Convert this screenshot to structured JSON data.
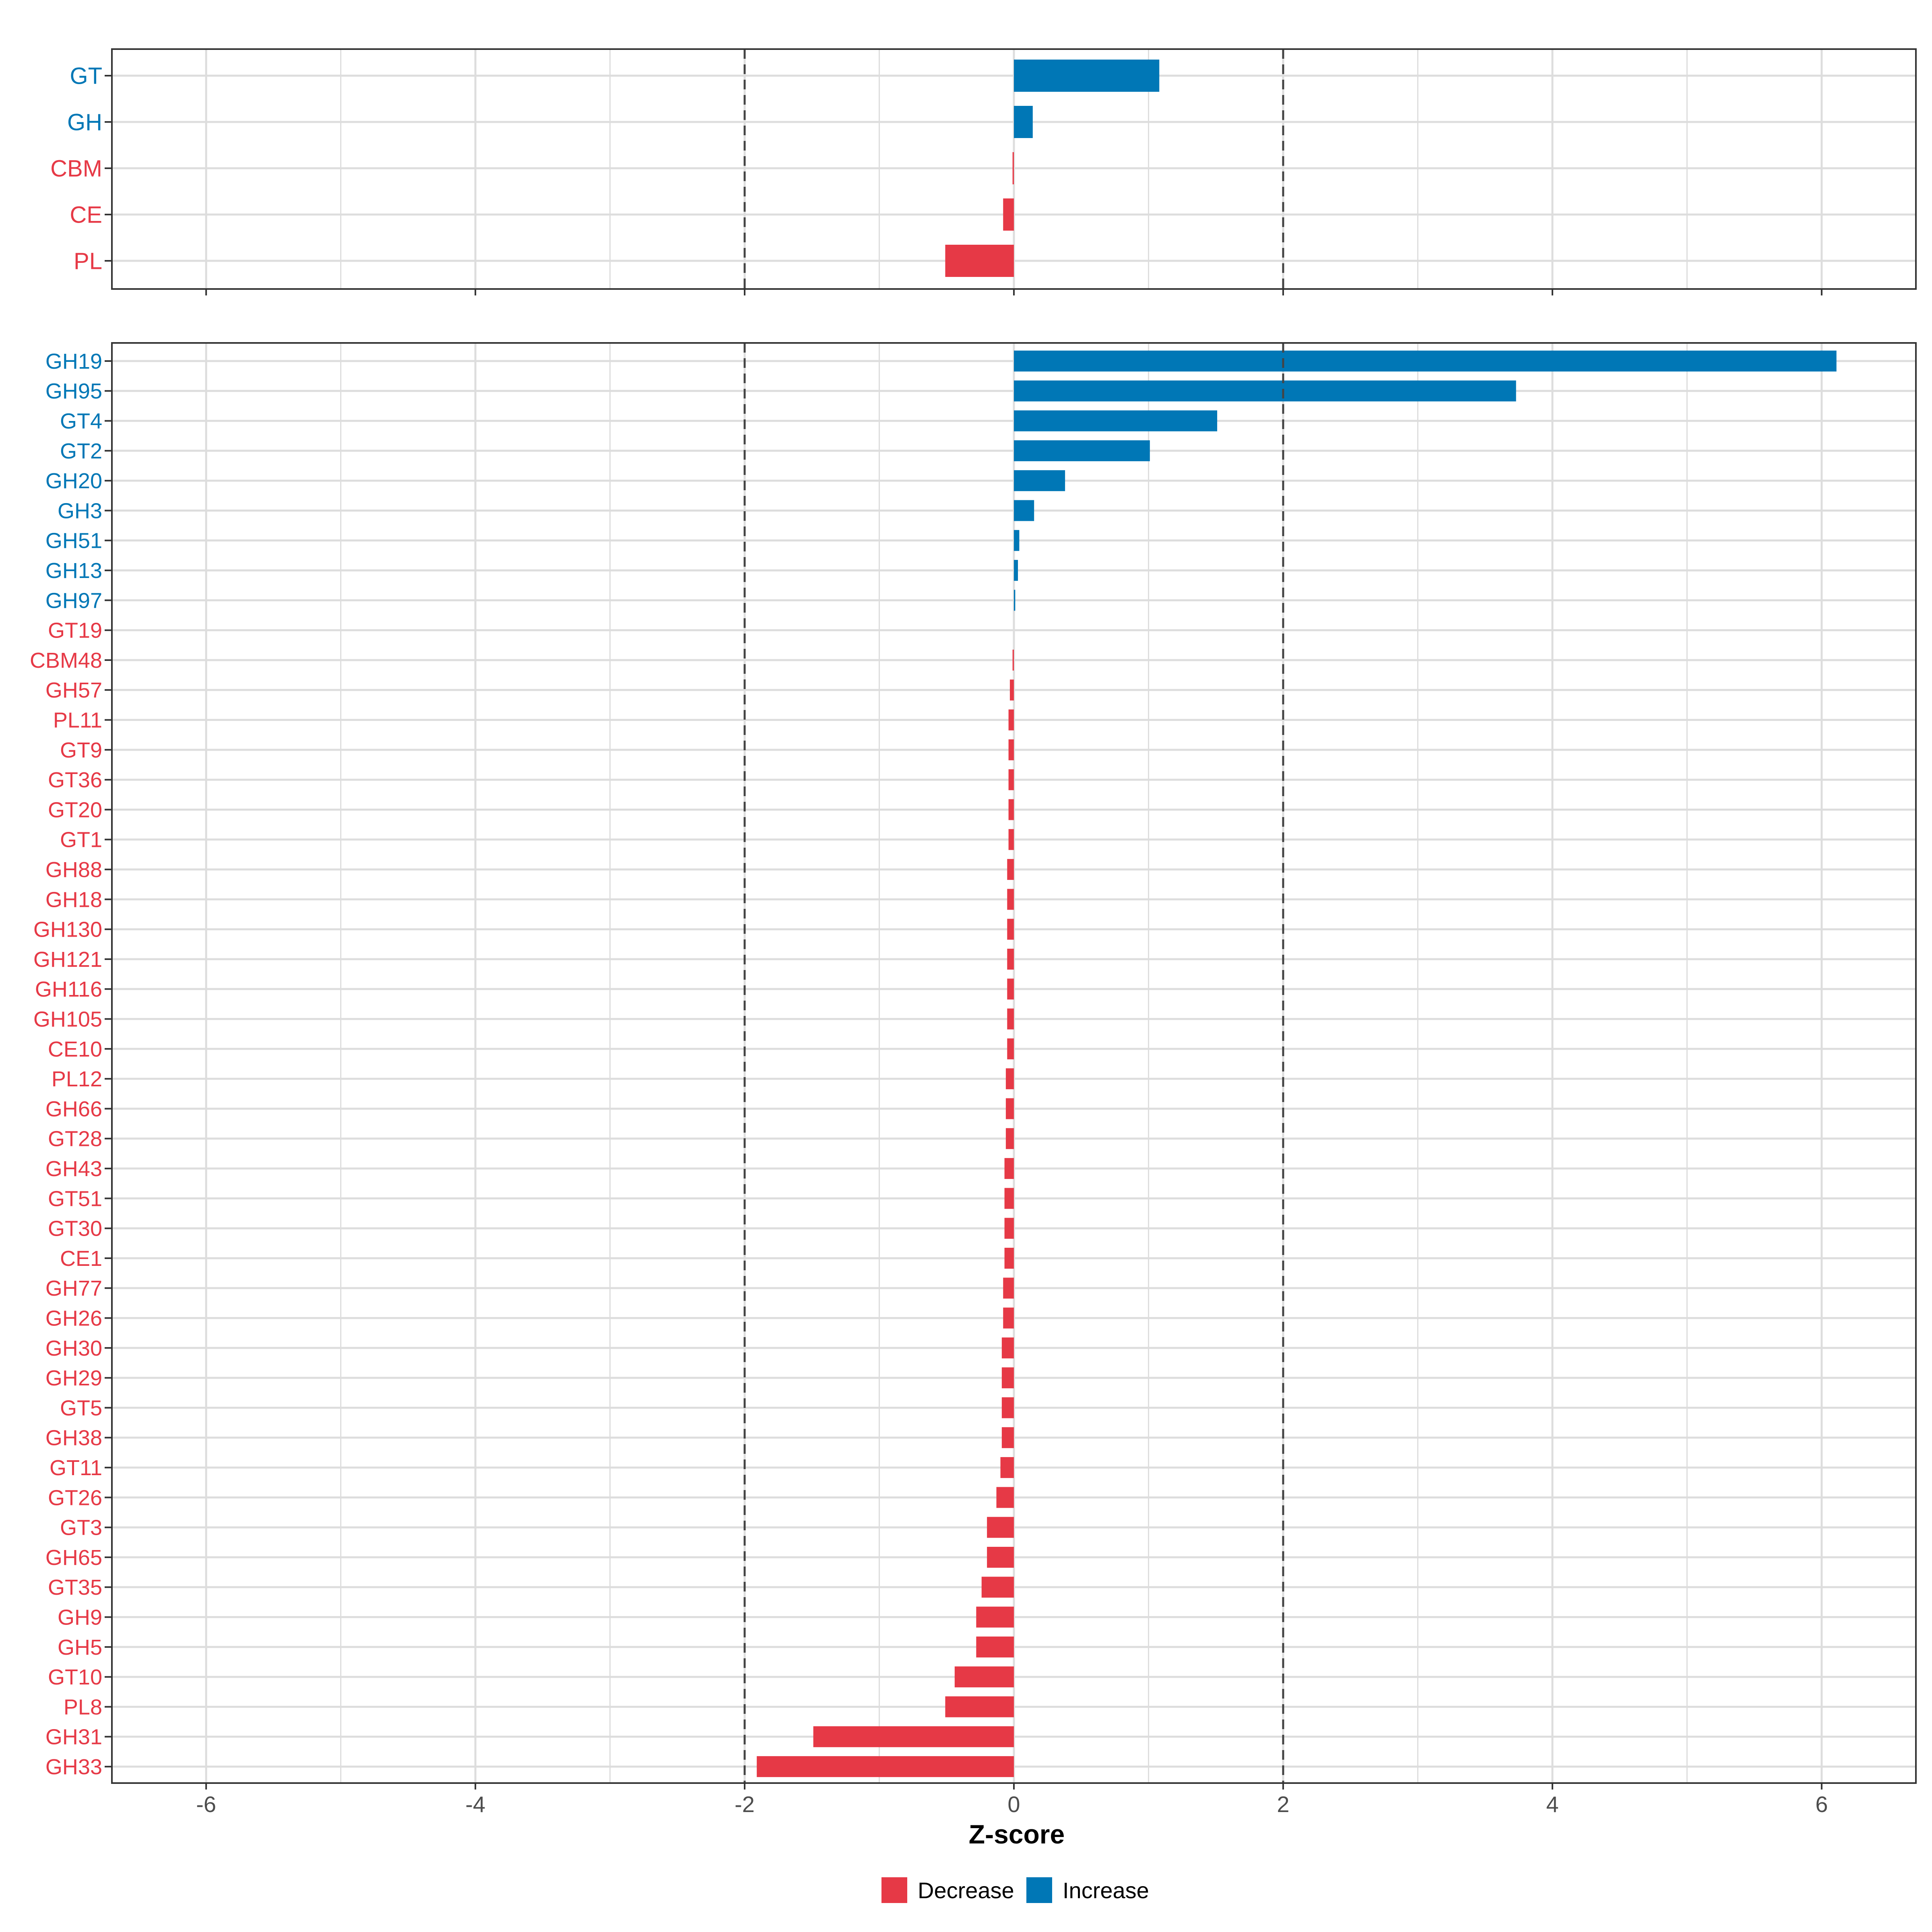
{
  "chart_data": [
    {
      "type": "bar",
      "orientation": "horizontal",
      "panel": "top",
      "categories": [
        "GT",
        "GH",
        "CBM",
        "CE",
        "PL"
      ],
      "values": [
        1.08,
        0.14,
        -0.01,
        -0.08,
        -0.51
      ],
      "directions": [
        "Increase",
        "Increase",
        "Decrease",
        "Decrease",
        "Decrease"
      ],
      "xlim": [
        -6.7,
        6.7
      ],
      "reference_lines": [
        -2,
        2
      ],
      "grid": true
    },
    {
      "type": "bar",
      "orientation": "horizontal",
      "panel": "bottom",
      "categories": [
        "GH19",
        "GH95",
        "GT4",
        "GT2",
        "GH20",
        "GH3",
        "GH51",
        "GH13",
        "GH97",
        "GT19",
        "CBM48",
        "GH57",
        "PL11",
        "GT9",
        "GT36",
        "GT20",
        "GT1",
        "GH88",
        "GH18",
        "GH130",
        "GH121",
        "GH116",
        "GH105",
        "CE10",
        "PL12",
        "GH66",
        "GT28",
        "GH43",
        "GT51",
        "GT30",
        "CE1",
        "GH77",
        "GH26",
        "GH30",
        "GH29",
        "GT5",
        "GH38",
        "GT11",
        "GT26",
        "GT3",
        "GH65",
        "GT35",
        "GH9",
        "GH5",
        "GT10",
        "PL8",
        "GH31",
        "GH33"
      ],
      "values": [
        6.11,
        3.73,
        1.51,
        1.01,
        0.38,
        0.15,
        0.04,
        0.03,
        0.01,
        0.0,
        -0.01,
        -0.03,
        -0.04,
        -0.04,
        -0.04,
        -0.04,
        -0.04,
        -0.05,
        -0.05,
        -0.05,
        -0.05,
        -0.05,
        -0.05,
        -0.05,
        -0.06,
        -0.06,
        -0.06,
        -0.07,
        -0.07,
        -0.07,
        -0.07,
        -0.08,
        -0.08,
        -0.09,
        -0.09,
        -0.09,
        -0.09,
        -0.1,
        -0.13,
        -0.2,
        -0.2,
        -0.24,
        -0.28,
        -0.28,
        -0.44,
        -0.51,
        -1.49,
        -1.91
      ],
      "directions": [
        "Increase",
        "Increase",
        "Increase",
        "Increase",
        "Increase",
        "Increase",
        "Increase",
        "Increase",
        "Increase",
        "Decrease",
        "Decrease",
        "Decrease",
        "Decrease",
        "Decrease",
        "Decrease",
        "Decrease",
        "Decrease",
        "Decrease",
        "Decrease",
        "Decrease",
        "Decrease",
        "Decrease",
        "Decrease",
        "Decrease",
        "Decrease",
        "Decrease",
        "Decrease",
        "Decrease",
        "Decrease",
        "Decrease",
        "Decrease",
        "Decrease",
        "Decrease",
        "Decrease",
        "Decrease",
        "Decrease",
        "Decrease",
        "Decrease",
        "Decrease",
        "Decrease",
        "Decrease",
        "Decrease",
        "Decrease",
        "Decrease",
        "Decrease",
        "Decrease",
        "Decrease",
        "Decrease"
      ],
      "xlim": [
        -6.7,
        6.7
      ],
      "xticks": [
        -6,
        -4,
        -2,
        0,
        2,
        4,
        6
      ],
      "xtick_labels": [
        "-6",
        "-4",
        "-2",
        "0",
        "2",
        "4",
        "6"
      ],
      "xlabel": "Z-score",
      "reference_lines": [
        -2,
        2
      ],
      "grid": true
    }
  ],
  "legend": {
    "placement": "bottom-center",
    "items": [
      {
        "label": "Decrease",
        "color": "#E63946"
      },
      {
        "label": "Increase",
        "color": "#0077B6"
      }
    ]
  },
  "colors": {
    "Decrease": "#E63946",
    "Increase": "#0077B6",
    "grid": "#DDDDDD",
    "frame": "#333333",
    "reference_line": "#444444",
    "tick_text": "#4D4D4D"
  }
}
